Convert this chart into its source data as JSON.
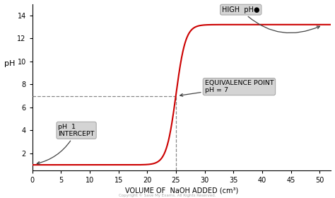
{
  "title": "",
  "xlabel": "VOLUME OF  NaOH ADDED (cm³)",
  "ylabel": "pH",
  "xlim": [
    0,
    52
  ],
  "ylim": [
    0.5,
    15
  ],
  "xticks": [
    0,
    5,
    10,
    15,
    20,
    25,
    30,
    35,
    40,
    45,
    50
  ],
  "yticks": [
    2,
    4,
    6,
    8,
    10,
    12,
    14
  ],
  "equivalence_x": 25,
  "equivalence_y": 7,
  "curve_color": "#cc0000",
  "background_color": "#ffffff",
  "annotation_box_facecolor": "#d8d8d8",
  "annotation_box_edgecolor": "#999999",
  "dashed_line_color": "#888888",
  "high_ph_text": "HIGH  pH●",
  "equivalence_text": "EQUIVALENCE POINT\npH = 7",
  "intercept_text": "pH  1\nINTERCEPT",
  "steepness": 1.2,
  "ph_start": 1.0,
  "ph_end": 13.2
}
